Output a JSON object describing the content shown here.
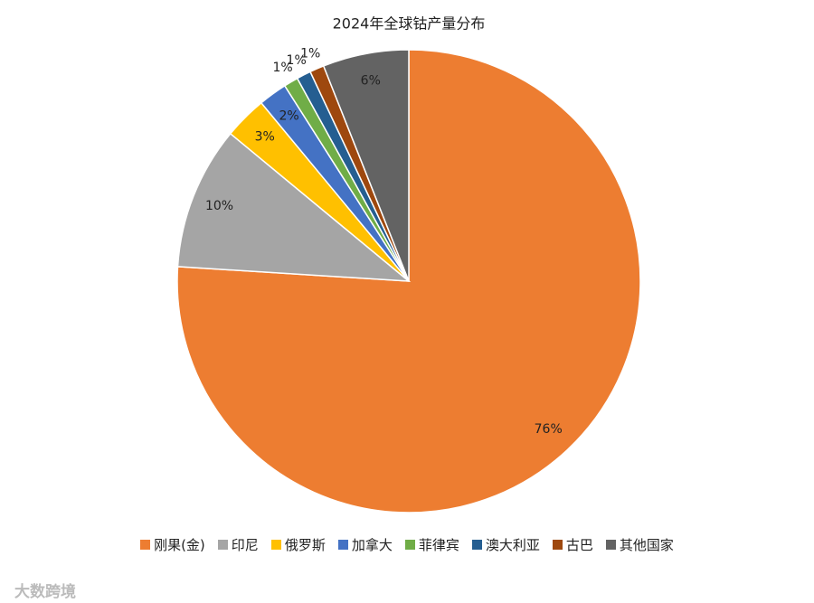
{
  "chart_data": {
    "type": "pie",
    "title": "2024年全球钴产量分布",
    "categories": [
      "刚果(金)",
      "印尼",
      "俄罗斯",
      "加拿大",
      "菲律宾",
      "澳大利亚",
      "古巴",
      "其他国家"
    ],
    "values": [
      76,
      10,
      3,
      2,
      1,
      1,
      1,
      6
    ],
    "value_labels": [
      "76%",
      "10%",
      "3%",
      "2%",
      "1%",
      "1%",
      "1%",
      "6%"
    ],
    "colors": [
      "#ED7D31",
      "#A5A5A5",
      "#FFC000",
      "#4472C4",
      "#70AD47",
      "#255E91",
      "#9E480E",
      "#636363"
    ],
    "legend": "bottom"
  },
  "watermark": "大数跨境"
}
